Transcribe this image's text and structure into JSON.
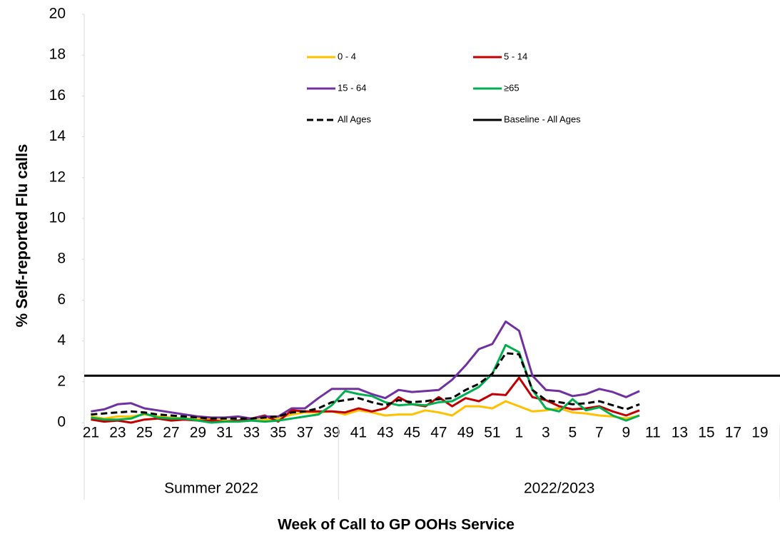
{
  "chart_data": {
    "type": "line",
    "y_label": "% Self-reported Flu calls",
    "x_label": "Week of Call to GP OOHs Service",
    "categories": [
      "21",
      null,
      "23",
      null,
      "25",
      null,
      "27",
      null,
      "29",
      null,
      "31",
      null,
      "33",
      null,
      "35",
      null,
      "37",
      null,
      "39",
      null,
      "41",
      null,
      "43",
      null,
      "45",
      null,
      "47",
      null,
      "49",
      null,
      "51",
      null,
      "1",
      null,
      "3",
      null,
      "5",
      null,
      "7",
      null,
      "9",
      null,
      "11",
      null,
      "13",
      null,
      "15",
      null,
      "17",
      null,
      "19",
      null
    ],
    "groups": [
      {
        "label": "Summer 2022",
        "count": 19
      },
      {
        "label": "2022/2023",
        "count": 33
      }
    ],
    "series": [
      {
        "name": "0 - 4",
        "color": "#FFC000",
        "values": [
          0.3,
          0.2,
          0.3,
          0.3,
          0.4,
          0.3,
          0.25,
          0.2,
          0.2,
          0.15,
          0.1,
          0.1,
          0.1,
          0.15,
          0.2,
          0.4,
          0.5,
          0.5,
          0.55,
          0.4,
          0.6,
          0.5,
          0.35,
          0.4,
          0.4,
          0.6,
          0.5,
          0.35,
          0.8,
          0.8,
          0.7,
          1.05,
          0.8,
          0.55,
          0.6,
          0.7,
          0.5,
          0.45,
          0.35,
          0.3,
          0.2,
          0.35,
          null,
          null,
          null,
          null,
          null,
          null,
          null,
          null,
          null,
          null
        ]
      },
      {
        "name": "5 - 14",
        "color": "#C00000",
        "values": [
          0.15,
          0.05,
          0.1,
          0.0,
          0.15,
          0.2,
          0.1,
          0.15,
          0.1,
          0.1,
          0.05,
          0.1,
          0.2,
          0.35,
          0.05,
          0.6,
          0.55,
          0.55,
          0.55,
          0.5,
          0.7,
          0.55,
          0.7,
          1.25,
          0.9,
          0.8,
          1.25,
          0.8,
          1.2,
          1.05,
          1.4,
          1.35,
          2.2,
          1.25,
          1.1,
          0.8,
          0.65,
          0.7,
          0.8,
          0.55,
          0.35,
          0.6,
          null,
          null,
          null,
          null,
          null,
          null,
          null,
          null,
          null,
          null
        ]
      },
      {
        "name": "15 - 64",
        "color": "#7030A0",
        "values": [
          0.55,
          0.65,
          0.9,
          0.95,
          0.7,
          0.6,
          0.5,
          0.4,
          0.3,
          0.25,
          0.25,
          0.3,
          0.2,
          0.3,
          0.3,
          0.7,
          0.7,
          1.2,
          1.65,
          1.65,
          1.65,
          1.4,
          1.2,
          1.6,
          1.5,
          1.55,
          1.6,
          2.1,
          2.8,
          3.6,
          3.85,
          4.95,
          4.5,
          2.3,
          1.6,
          1.55,
          1.3,
          1.4,
          1.65,
          1.5,
          1.25,
          1.55,
          null,
          null,
          null,
          null,
          null,
          null,
          null,
          null,
          null,
          null
        ]
      },
      {
        "name": "≥65",
        "color": "#00B050",
        "values": [
          0.25,
          0.15,
          0.15,
          0.2,
          0.45,
          0.25,
          0.2,
          0.2,
          0.1,
          0.0,
          0.05,
          0.05,
          0.1,
          0.05,
          0.1,
          0.2,
          0.3,
          0.4,
          0.85,
          1.55,
          1.4,
          1.3,
          1.0,
          0.85,
          0.9,
          0.85,
          1.0,
          1.05,
          1.4,
          1.75,
          2.4,
          3.8,
          3.45,
          1.6,
          0.7,
          0.55,
          1.15,
          0.6,
          0.75,
          0.35,
          0.1,
          0.35,
          null,
          null,
          null,
          null,
          null,
          null,
          null,
          null,
          null,
          null
        ]
      },
      {
        "name": "All Ages",
        "color": "#000000",
        "dashed": true,
        "values": [
          0.4,
          0.45,
          0.5,
          0.55,
          0.5,
          0.4,
          0.35,
          0.3,
          0.25,
          0.2,
          0.2,
          0.2,
          0.2,
          0.25,
          0.3,
          0.5,
          0.55,
          0.7,
          1.0,
          1.1,
          1.2,
          1.0,
          0.85,
          1.1,
          1.0,
          1.05,
          1.15,
          1.2,
          1.6,
          1.9,
          2.4,
          3.4,
          3.35,
          1.6,
          1.1,
          1.0,
          0.9,
          0.95,
          1.05,
          0.85,
          0.65,
          0.9,
          null,
          null,
          null,
          null,
          null,
          null,
          null,
          null,
          null,
          null
        ]
      }
    ],
    "baseline": {
      "name": "Baseline - All Ages",
      "color": "#000000",
      "value": 2.3
    },
    "ylim": [
      0,
      20
    ],
    "yticks": [
      0,
      2,
      4,
      6,
      8,
      10,
      12,
      14,
      16,
      18,
      20
    ],
    "grid": false
  }
}
